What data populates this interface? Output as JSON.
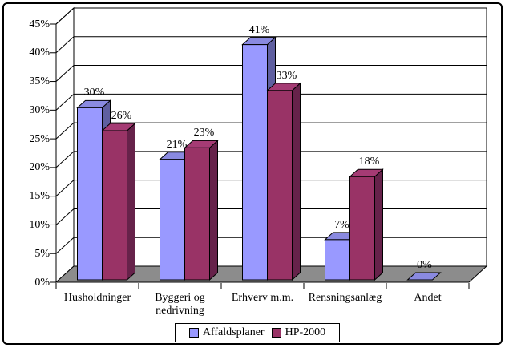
{
  "chart_data": {
    "type": "bar",
    "style": "3d-clustered",
    "title": "",
    "categories": [
      "Husholdninger",
      "Byggeri og nedrivning",
      "Erhverv m.m.",
      "Rensningsanlæg",
      "Andet"
    ],
    "series": [
      {
        "name": "Affaldsplaner",
        "values": [
          30,
          21,
          41,
          7,
          0
        ],
        "color": "#9999FF",
        "color_top": "#8A8AE0",
        "color_side": "#5F5FA0"
      },
      {
        "name": "HP-2000",
        "values": [
          26,
          23,
          33,
          18,
          null
        ],
        "color": "#993366",
        "color_top": "#A53B74",
        "color_side": "#66224A"
      }
    ],
    "data_labels": [
      [
        "30%",
        "21%",
        "41%",
        "7%",
        "0%"
      ],
      [
        "26%",
        "23%",
        "33%",
        "18%",
        null
      ]
    ],
    "yticks": [
      0,
      5,
      10,
      15,
      20,
      25,
      30,
      35,
      40,
      45
    ],
    "ytick_labels": [
      "0%",
      "5%",
      "10%",
      "15%",
      "20%",
      "25%",
      "30%",
      "35%",
      "40%",
      "45%"
    ],
    "ylim": [
      0,
      45
    ],
    "grid": true,
    "legend_position": "bottom",
    "colors": {
      "wall": "#FFFFFF",
      "floor": "#8C8C8C",
      "outline": "#000000"
    }
  }
}
